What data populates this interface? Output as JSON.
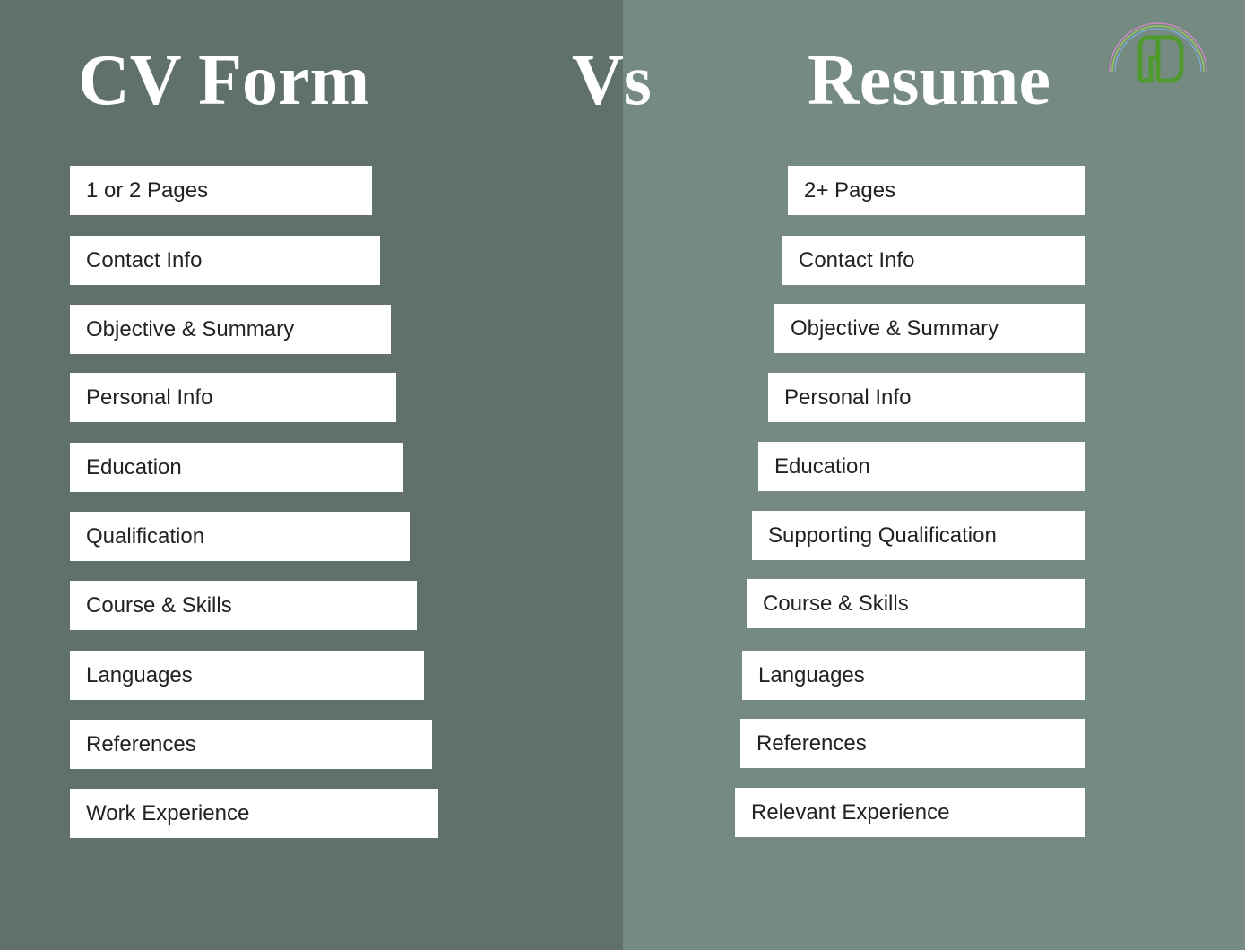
{
  "header": {
    "left_title": "CV Form",
    "vs": "Vs",
    "right_title": "Resume"
  },
  "cv_items": [
    "1 or 2 Pages",
    "Contact Info",
    "Objective & Summary",
    "Personal Info",
    "Education",
    "Qualification",
    "Course & Skills",
    "Languages",
    "References",
    "Work Experience"
  ],
  "resume_items": [
    "2+ Pages",
    "Contact Info",
    "Objective & Summary",
    "Personal Info",
    "Education",
    "Supporting Qualification",
    "Course & Skills",
    "Languages",
    "References",
    "Relevant Experience"
  ],
  "colors": {
    "left_background": "#5f7169",
    "right_background": "#758b82",
    "box": "#ffffff",
    "logo_green": "#4e9a2d"
  },
  "icons": {
    "logo": "gd-monogram-logo-icon"
  }
}
